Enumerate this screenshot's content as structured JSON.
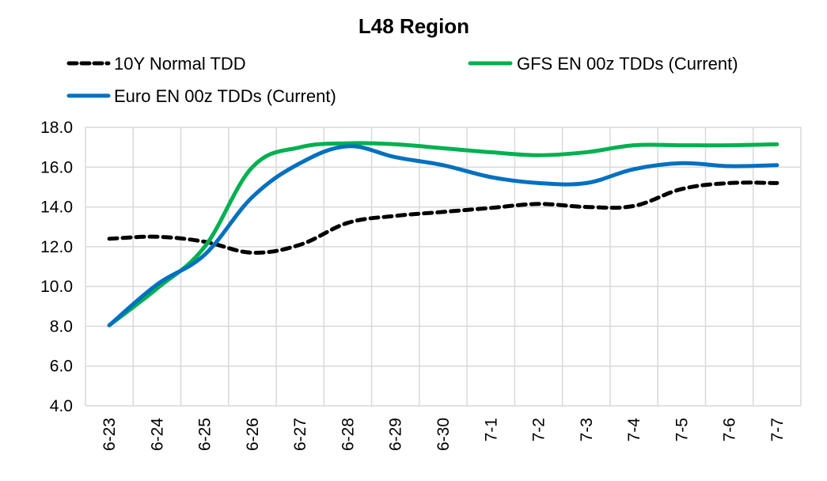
{
  "chart_data": {
    "type": "line",
    "title": "L48 Region",
    "xlabel": "",
    "ylabel": "",
    "ylim": [
      4.0,
      18.0
    ],
    "yticks": [
      "4.0",
      "6.0",
      "8.0",
      "10.0",
      "12.0",
      "14.0",
      "16.0",
      "18.0"
    ],
    "ytick_values": [
      4,
      6,
      8,
      10,
      12,
      14,
      16,
      18
    ],
    "grid": true,
    "legend_position": "top",
    "categories": [
      "6-23",
      "6-24",
      "6-25",
      "6-26",
      "6-27",
      "6-28",
      "6-29",
      "6-30",
      "7-1",
      "7-2",
      "7-3",
      "7-4",
      "7-5",
      "7-6",
      "7-7"
    ],
    "series": [
      {
        "name": "10Y Normal TDD",
        "color": "#000000",
        "style": "dashed",
        "values": [
          12.4,
          12.5,
          12.25,
          11.7,
          12.1,
          13.2,
          13.55,
          13.75,
          13.95,
          14.15,
          14.0,
          14.05,
          14.9,
          15.2,
          15.2
        ]
      },
      {
        "name": "GFS EN 00z TDDs (Current)",
        "color": "#00B050",
        "style": "solid",
        "values": [
          8.05,
          9.9,
          12.0,
          16.0,
          17.0,
          17.2,
          17.15,
          16.95,
          16.75,
          16.6,
          16.75,
          17.1,
          17.1,
          17.1,
          17.15
        ]
      },
      {
        "name": "Euro EN 00z TDDs (Current)",
        "color": "#0070C0",
        "style": "solid",
        "values": [
          8.05,
          10.1,
          11.6,
          14.5,
          16.2,
          17.05,
          16.5,
          16.1,
          15.5,
          15.2,
          15.2,
          15.9,
          16.2,
          16.05,
          16.1
        ]
      }
    ]
  }
}
